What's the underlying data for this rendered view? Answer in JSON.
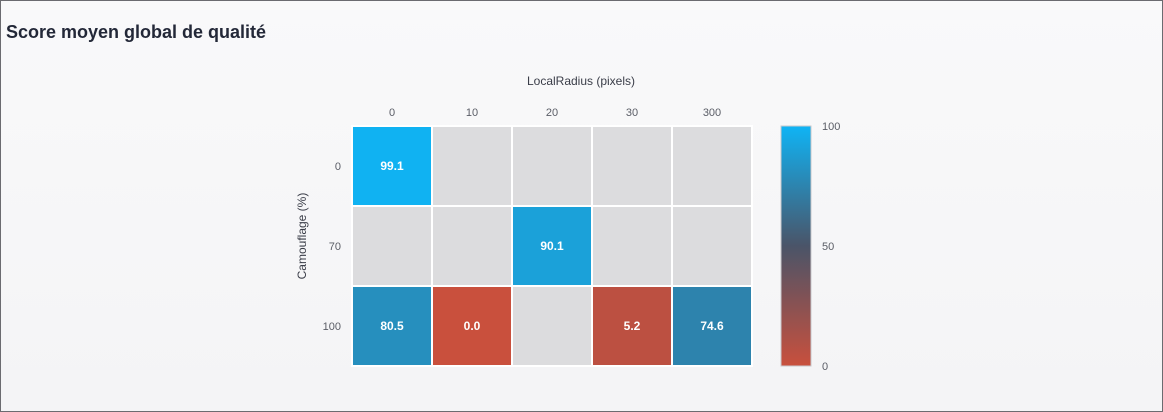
{
  "page": {
    "title": "Score moyen global de qualité"
  },
  "chart_data": {
    "type": "heatmap",
    "title": "Score moyen global de qualité",
    "xlabel": "LocalRadius (pixels)",
    "ylabel": "Camouflage (%)",
    "x_categories": [
      "0",
      "10",
      "20",
      "30",
      "300"
    ],
    "y_categories": [
      "0",
      "70",
      "100"
    ],
    "values": [
      [
        99.1,
        null,
        null,
        null,
        null
      ],
      [
        null,
        null,
        90.1,
        null,
        null
      ],
      [
        80.5,
        0.0,
        null,
        5.2,
        74.6
      ]
    ],
    "value_labels": [
      [
        "99.1",
        "",
        "",
        "",
        ""
      ],
      [
        "",
        "",
        "90.1",
        "",
        ""
      ],
      [
        "80.5",
        "0.0",
        "",
        "5.2",
        "74.6"
      ]
    ],
    "colorbar": {
      "min": 0,
      "max": 100,
      "ticks": [
        "0",
        "50",
        "100"
      ],
      "colors": {
        "low": "#c9503d",
        "mid": "#4a5468",
        "high": "#0fb4f5"
      }
    },
    "missing_color": "#dcdcde",
    "grid": true,
    "legend": "colorbar-right"
  }
}
